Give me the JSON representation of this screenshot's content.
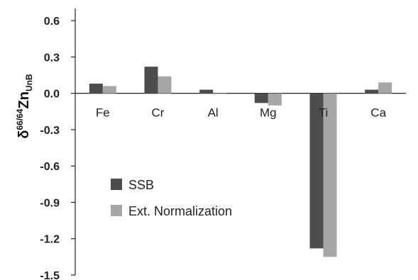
{
  "chart_data": {
    "type": "bar",
    "categories": [
      "Fe",
      "Cr",
      "Al",
      "Mg",
      "Ti",
      "Ca"
    ],
    "series": [
      {
        "name": "SSB",
        "values": [
          0.08,
          0.22,
          0.03,
          -0.08,
          -1.28,
          0.03
        ],
        "color": "#4d4d4d"
      },
      {
        "name": "Ext. Normalization",
        "values": [
          0.06,
          0.14,
          0.0,
          -0.1,
          -1.35,
          0.09
        ],
        "color": "#a6a6a6"
      }
    ],
    "y_ticks": [
      "0.6",
      "0.3",
      "0.0",
      "-0.3",
      "-0.6",
      "-0.9",
      "-1.2",
      "-1.5"
    ],
    "ylim": [
      -1.5,
      0.7
    ],
    "ylabel": {
      "main": "δ",
      "sup": "66/64",
      "element": "Zn",
      "sub": "UnB"
    },
    "legend_position": "middle-left",
    "grid": false
  }
}
